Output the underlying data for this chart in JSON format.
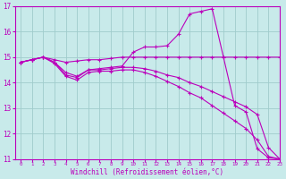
{
  "title": "",
  "xlabel": "Windchill (Refroidissement éolien,°C)",
  "xlim": [
    -0.5,
    23
  ],
  "ylim": [
    11,
    17
  ],
  "yticks": [
    11,
    12,
    13,
    14,
    15,
    16,
    17
  ],
  "xticks": [
    0,
    1,
    2,
    3,
    4,
    5,
    6,
    7,
    8,
    9,
    10,
    11,
    12,
    13,
    14,
    15,
    16,
    17,
    18,
    19,
    20,
    21,
    22,
    23
  ],
  "background_color": "#c8eaea",
  "line_color": "#bb00bb",
  "grid_color": "#a0cccc",
  "lines": [
    {
      "x": [
        0,
        1,
        2,
        3,
        4,
        5,
        6,
        7,
        8,
        9,
        10,
        11,
        12,
        13,
        14,
        15,
        16,
        17,
        18,
        19,
        20,
        21,
        22,
        23
      ],
      "y": [
        14.8,
        14.9,
        15.0,
        14.9,
        14.8,
        14.85,
        14.9,
        14.9,
        14.95,
        15.0,
        15.0,
        15.0,
        15.0,
        15.0,
        15.0,
        15.0,
        15.0,
        15.0,
        15.0,
        15.0,
        15.0,
        15.0,
        15.0,
        15.0
      ]
    },
    {
      "x": [
        0,
        1,
        2,
        3,
        4,
        5,
        6,
        7,
        8,
        9,
        10,
        11,
        12,
        13,
        14,
        15,
        16,
        17,
        18,
        19,
        20,
        21,
        22,
        23
      ],
      "y": [
        14.8,
        14.9,
        15.0,
        14.8,
        14.4,
        14.25,
        14.5,
        14.55,
        14.6,
        14.65,
        15.2,
        15.4,
        15.4,
        15.45,
        15.9,
        16.7,
        16.8,
        16.9,
        15.0,
        13.1,
        12.85,
        11.4,
        11.05,
        11.0
      ]
    },
    {
      "x": [
        0,
        1,
        2,
        3,
        4,
        5,
        6,
        7,
        8,
        9,
        10,
        11,
        12,
        13,
        14,
        15,
        16,
        17,
        18,
        19,
        20,
        21,
        22,
        23
      ],
      "y": [
        14.8,
        14.9,
        15.0,
        14.8,
        14.3,
        14.2,
        14.5,
        14.5,
        14.55,
        14.6,
        14.6,
        14.55,
        14.45,
        14.3,
        14.2,
        14.0,
        13.85,
        13.65,
        13.45,
        13.25,
        13.05,
        12.75,
        11.45,
        11.0
      ]
    },
    {
      "x": [
        0,
        1,
        2,
        3,
        4,
        5,
        6,
        7,
        8,
        9,
        10,
        11,
        12,
        13,
        14,
        15,
        16,
        17,
        18,
        19,
        20,
        21,
        22,
        23
      ],
      "y": [
        14.8,
        14.9,
        15.0,
        14.75,
        14.25,
        14.1,
        14.4,
        14.45,
        14.45,
        14.5,
        14.5,
        14.4,
        14.25,
        14.05,
        13.85,
        13.6,
        13.4,
        13.1,
        12.8,
        12.5,
        12.2,
        11.75,
        11.1,
        11.0
      ]
    }
  ]
}
